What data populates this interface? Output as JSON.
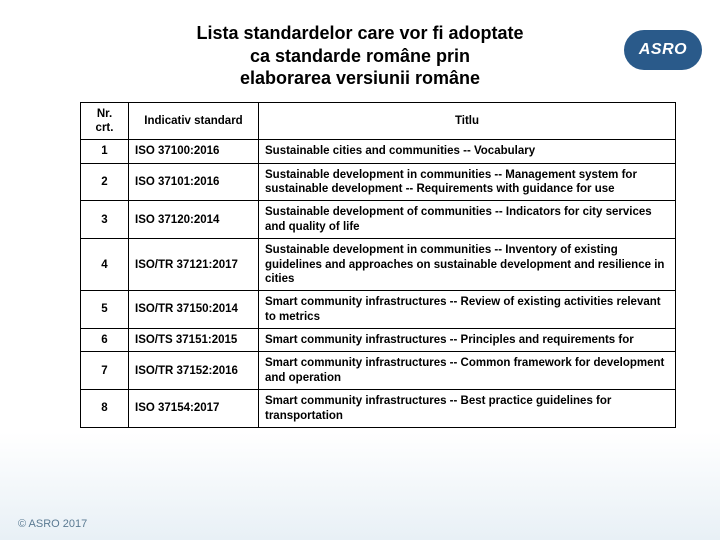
{
  "title_lines": [
    "Lista standardelor care vor fi adoptate",
    "ca standarde române prin",
    "elaborarea versiunii române"
  ],
  "logo_text": "ASRO",
  "footer_text": "© ASRO 2017",
  "table": {
    "headers": [
      "Nr. crt.",
      "Indicativ standard",
      "Titlu"
    ],
    "rows": [
      {
        "nr": "1",
        "ind": "ISO 37100:2016",
        "tit": "Sustainable cities and communities -- Vocabulary"
      },
      {
        "nr": "2",
        "ind": "ISO 37101:2016",
        "tit": "Sustainable development in communities -- Management system for sustainable development -- Requirements with guidance for use"
      },
      {
        "nr": "3",
        "ind": "ISO 37120:2014",
        "tit": "Sustainable development of communities -- Indicators for city services and quality of life"
      },
      {
        "nr": "4",
        "ind": "ISO/TR 37121:2017",
        "tit": "Sustainable development in communities -- Inventory of existing guidelines and approaches on sustainable development and resilience in cities"
      },
      {
        "nr": "5",
        "ind": "ISO/TR 37150:2014",
        "tit": "Smart community infrastructures -- Review of existing activities relevant to metrics"
      },
      {
        "nr": "6",
        "ind": "ISO/TS 37151:2015",
        "tit": "Smart community infrastructures -- Principles and requirements for"
      },
      {
        "nr": "7",
        "ind": "ISO/TR 37152:2016",
        "tit": "Smart community infrastructures -- Common framework for development and operation"
      },
      {
        "nr": "8",
        "ind": "ISO 37154:2017",
        "tit": "Smart community infrastructures -- Best practice guidelines for transportation"
      }
    ]
  }
}
